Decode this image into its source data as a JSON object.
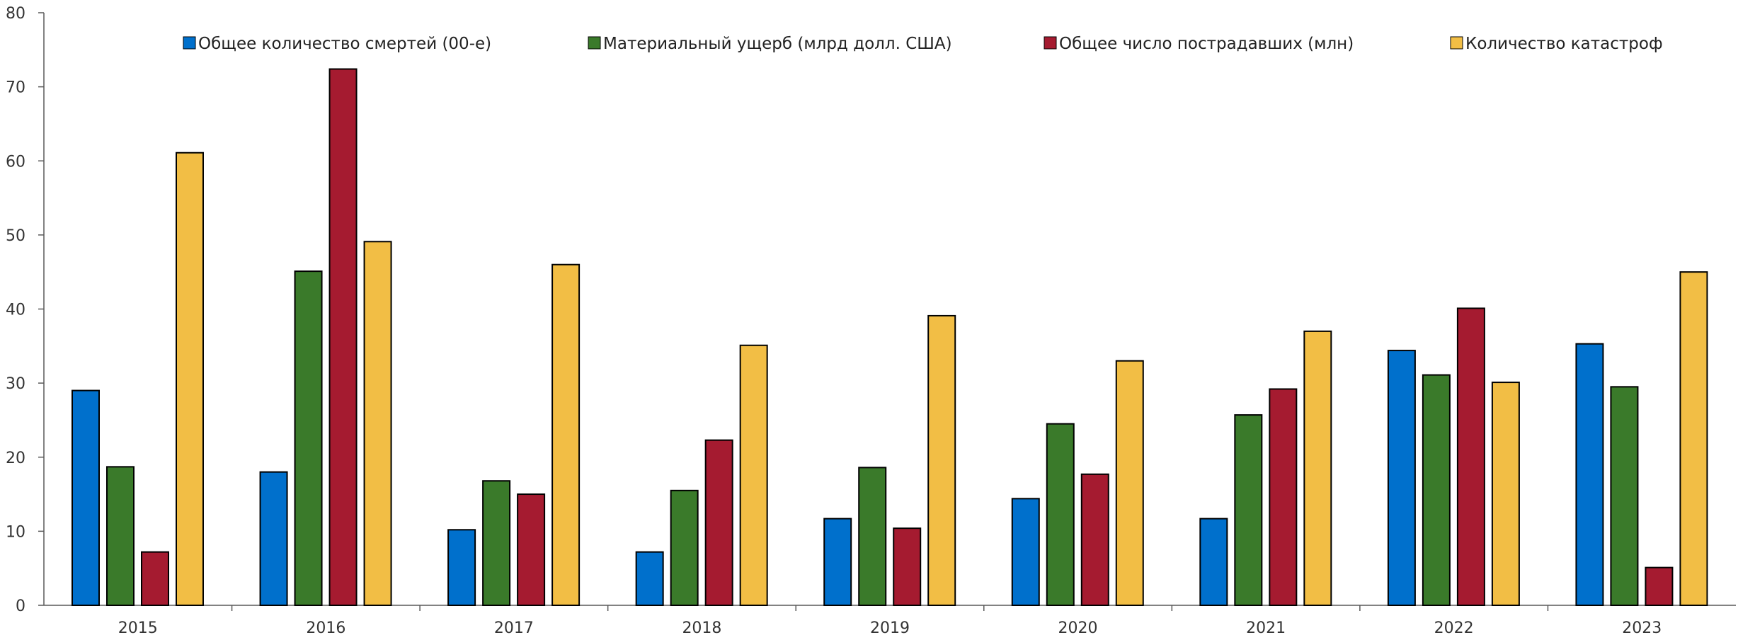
{
  "chart_data": {
    "type": "bar",
    "categories": [
      "2015",
      "2016",
      "2017",
      "2018",
      "2019",
      "2020",
      "2021",
      "2022",
      "2023"
    ],
    "series": [
      {
        "name": "Общее количество смертей (00-е)",
        "color": "#0070CC",
        "values": [
          29,
          18,
          10.2,
          7.2,
          11.7,
          14.4,
          11.7,
          34.4,
          35.3
        ]
      },
      {
        "name": "Материальный ущерб (млрд долл. США)",
        "color": "#3A7A2A",
        "values": [
          18.7,
          45.1,
          16.8,
          15.5,
          18.6,
          24.5,
          25.7,
          31.1,
          29.5
        ]
      },
      {
        "name": "Общее число пострадавших (млн)",
        "color": "#A51B30",
        "values": [
          7.2,
          72.4,
          15,
          22.3,
          10.4,
          17.7,
          29.2,
          40.1,
          5.1
        ]
      },
      {
        "name": "Количество катастроф",
        "color": "#F2BE45",
        "values": [
          61.1,
          49.1,
          46,
          35.1,
          39.1,
          33,
          37,
          30.1,
          45
        ]
      }
    ],
    "yticks": [
      "0",
      "10",
      "20",
      "30",
      "40",
      "50",
      "60",
      "70",
      "80"
    ],
    "ylim": [
      0,
      80
    ],
    "xlabel": "",
    "ylabel": "",
    "title": "",
    "grid": false,
    "legend_position": "top"
  }
}
